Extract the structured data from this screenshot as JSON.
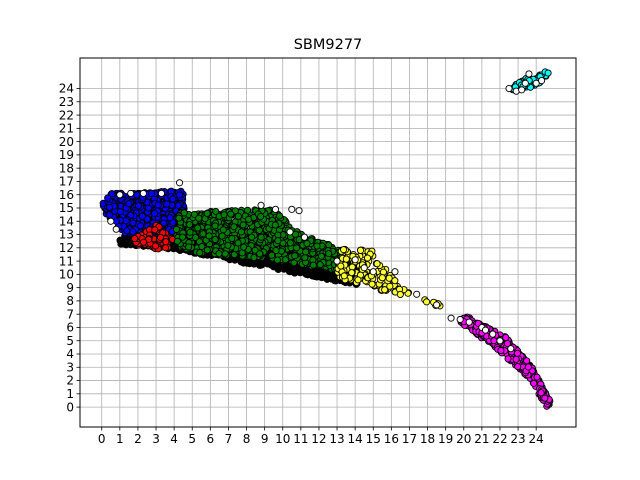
{
  "chart_data": {
    "type": "scatter",
    "title": "SBM9277",
    "xlabel": "",
    "ylabel": "",
    "xlim": [
      -1.2,
      26.2
    ],
    "ylim": [
      -1.5,
      26.3
    ],
    "xticks": [
      "0",
      "1",
      "2",
      "3",
      "4",
      "5",
      "6",
      "7",
      "8",
      "9",
      "10",
      "11",
      "12",
      "13",
      "14",
      "15",
      "16",
      "17",
      "18",
      "19",
      "20",
      "21",
      "22",
      "23",
      "24"
    ],
    "yticks": [
      "0",
      "1",
      "2",
      "3",
      "4",
      "5",
      "6",
      "7",
      "8",
      "9",
      "10",
      "11",
      "12",
      "13",
      "14",
      "15",
      "16",
      "17",
      "18",
      "19",
      "20",
      "21",
      "22",
      "23",
      "24"
    ],
    "grid": true,
    "marker": "circle, black edge",
    "colors": {
      "unassigned": "#ffffff",
      "black": "#000000",
      "blue": "#0000ff",
      "red": "#ff0000",
      "green": "#008000",
      "yellow": "#ffff33",
      "magenta": "#ff00ff",
      "cyan": "#00ffff"
    },
    "clusters": [
      {
        "color": "black",
        "region": [
          [
            0.8,
            12.3
          ],
          [
            4.3,
            11.8
          ],
          [
            12.5,
            9.6
          ],
          [
            14.1,
            9.2
          ],
          [
            14.2,
            11.1
          ],
          [
            10.2,
            12.6
          ],
          [
            5.2,
            14.4
          ],
          [
            1.6,
            13.4
          ]
        ],
        "approx_points": 1100
      },
      {
        "color": "blue",
        "region": [
          [
            0.0,
            15.3
          ],
          [
            0.5,
            16.1
          ],
          [
            4.5,
            16.3
          ],
          [
            4.6,
            14.1
          ],
          [
            4.1,
            13.1
          ],
          [
            1.3,
            13.1
          ],
          [
            0.1,
            14.7
          ]
        ],
        "approx_points": 650
      },
      {
        "color": "red",
        "region": [
          [
            1.7,
            12.6
          ],
          [
            3.0,
            13.8
          ],
          [
            4.0,
            12.7
          ],
          [
            3.6,
            11.8
          ],
          [
            2.0,
            12.1
          ]
        ],
        "approx_points": 90
      },
      {
        "color": "green",
        "region": [
          [
            4.3,
            14.7
          ],
          [
            9.5,
            14.9
          ],
          [
            10.9,
            13.1
          ],
          [
            13.8,
            11.6
          ],
          [
            13.5,
            10.2
          ],
          [
            9.0,
            11.2
          ],
          [
            5.6,
            11.5
          ],
          [
            4.2,
            12.1
          ],
          [
            4.1,
            13.8
          ]
        ],
        "approx_points": 900
      },
      {
        "color": "yellow",
        "region": [
          [
            13.1,
            12.0
          ],
          [
            15.0,
            11.8
          ],
          [
            16.5,
            9.0
          ],
          [
            18.9,
            7.2
          ],
          [
            18.6,
            7.9
          ],
          [
            15.9,
            8.6
          ],
          [
            13.0,
            9.7
          ]
        ],
        "approx_points": 140
      },
      {
        "color": "magenta",
        "region": [
          [
            20.1,
            6.9
          ],
          [
            22.3,
            5.3
          ],
          [
            23.8,
            3.0
          ],
          [
            24.8,
            0.4
          ],
          [
            24.6,
            -0.1
          ],
          [
            23.7,
            2.1
          ],
          [
            21.9,
            4.3
          ],
          [
            19.8,
            6.4
          ]
        ],
        "approx_points": 300
      },
      {
        "color": "cyan",
        "region": [
          [
            22.4,
            24.0
          ],
          [
            23.5,
            24.8
          ],
          [
            24.7,
            25.4
          ],
          [
            24.7,
            24.9
          ],
          [
            23.8,
            24.1
          ],
          [
            22.7,
            23.9
          ]
        ],
        "approx_points": 70
      },
      {
        "color": "unassigned",
        "points": [
          [
            0.5,
            14.0
          ],
          [
            0.8,
            13.4
          ],
          [
            1.0,
            16.0
          ],
          [
            1.6,
            16.1
          ],
          [
            2.3,
            16.1
          ],
          [
            3.3,
            16.1
          ],
          [
            4.3,
            16.9
          ],
          [
            8.8,
            15.2
          ],
          [
            9.6,
            14.9
          ],
          [
            10.5,
            14.9
          ],
          [
            10.9,
            14.8
          ],
          [
            10.4,
            13.2
          ],
          [
            11.2,
            12.8
          ],
          [
            13.0,
            11.0
          ],
          [
            14.0,
            11.1
          ],
          [
            14.5,
            10.5
          ],
          [
            15.0,
            10.2
          ],
          [
            16.2,
            10.2
          ],
          [
            17.4,
            8.5
          ],
          [
            18.5,
            7.7
          ],
          [
            19.3,
            6.7
          ],
          [
            19.8,
            6.6
          ],
          [
            20.3,
            6.4
          ],
          [
            21.0,
            6.0
          ],
          [
            21.2,
            5.8
          ],
          [
            21.6,
            5.5
          ],
          [
            22.0,
            5.0
          ],
          [
            22.6,
            4.4
          ],
          [
            22.5,
            24.0
          ],
          [
            22.9,
            23.8
          ],
          [
            23.4,
            24.4
          ],
          [
            23.6,
            25.1
          ],
          [
            24.0,
            24.4
          ],
          [
            24.3,
            24.6
          ],
          [
            23.2,
            23.9
          ]
        ]
      }
    ]
  }
}
